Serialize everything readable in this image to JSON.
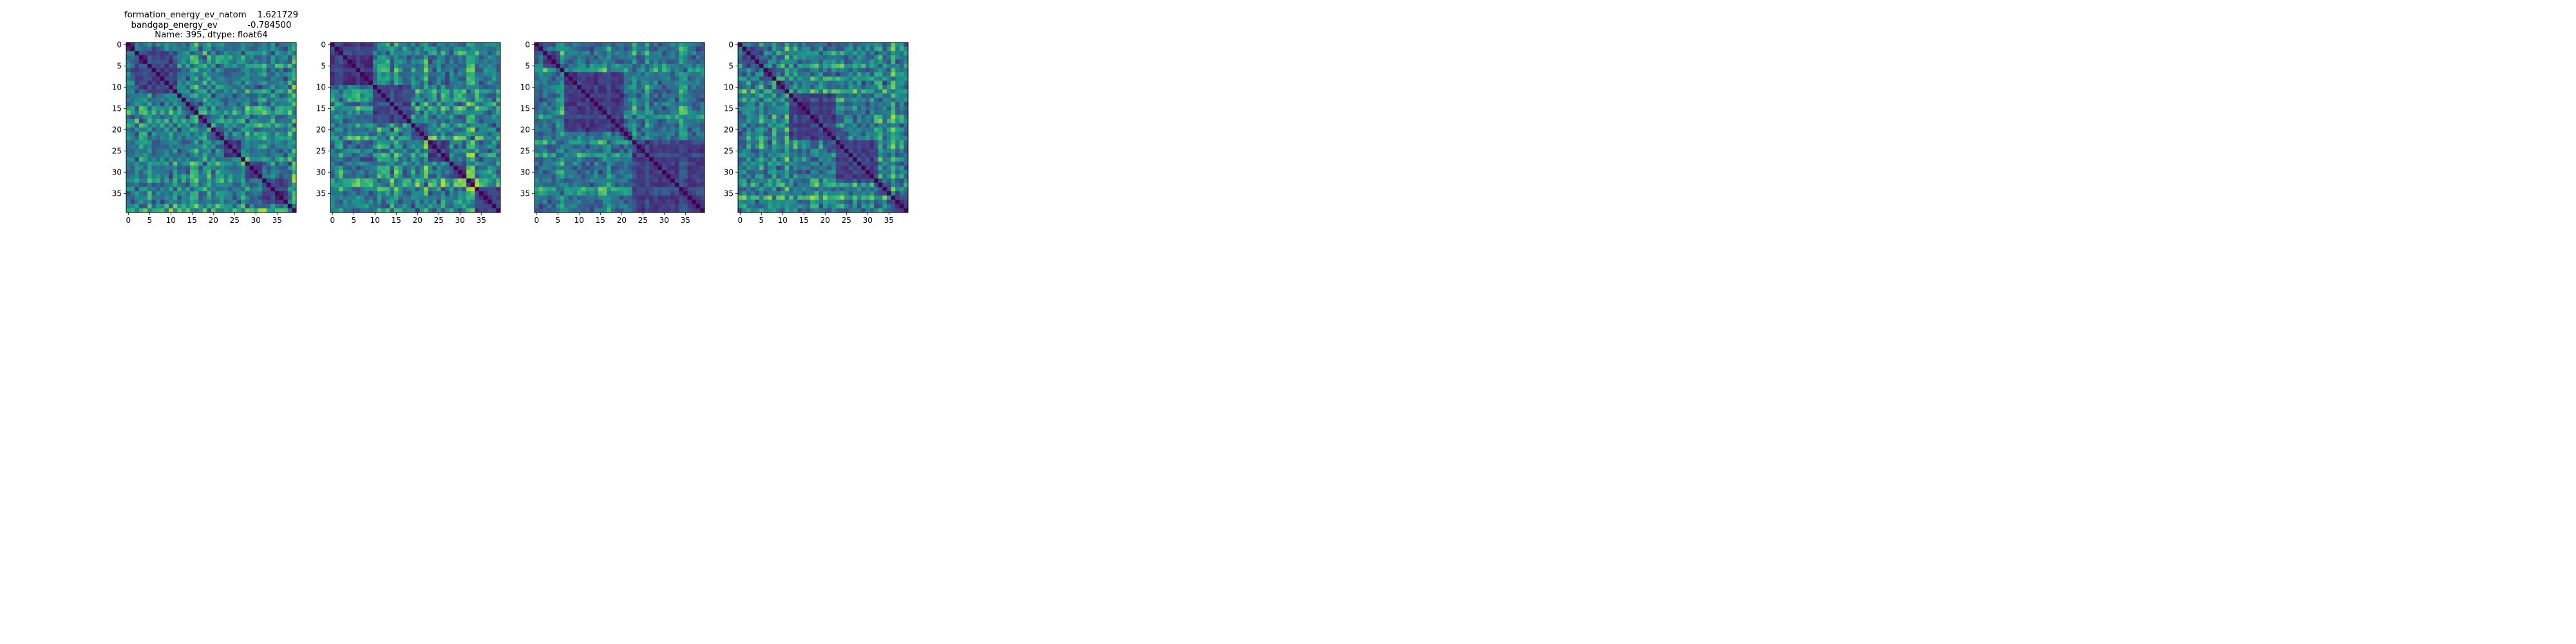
{
  "chart_data": [
    {
      "type": "heatmap",
      "title_lines": [
        "formation_energy_ev_natom    1.621729",
        "bandgap_energy_ev           -0.784500",
        "Name: 395, dtype: float64"
      ],
      "n": 40,
      "xticks": [
        0,
        5,
        10,
        15,
        20,
        25,
        30,
        35
      ],
      "yticks": [
        0,
        5,
        10,
        15,
        20,
        25,
        30,
        35
      ],
      "colormap": "viridis",
      "diagonal_value": 0,
      "seed": 11
    },
    {
      "type": "heatmap",
      "title_lines": [],
      "n": 40,
      "xticks": [
        0,
        5,
        10,
        15,
        20,
        25,
        30,
        35
      ],
      "yticks": [
        0,
        5,
        10,
        15,
        20,
        25,
        30,
        35
      ],
      "colormap": "viridis",
      "diagonal_value": 0,
      "seed": 23
    },
    {
      "type": "heatmap",
      "title_lines": [],
      "n": 40,
      "xticks": [
        0,
        5,
        10,
        15,
        20,
        25,
        30,
        35
      ],
      "yticks": [
        0,
        5,
        10,
        15,
        20,
        25,
        30,
        35
      ],
      "colormap": "viridis",
      "diagonal_value": 0,
      "seed": 37
    },
    {
      "type": "heatmap",
      "title_lines": [],
      "n": 40,
      "xticks": [
        0,
        5,
        10,
        15,
        20,
        25,
        30,
        35
      ],
      "yticks": [
        0,
        5,
        10,
        15,
        20,
        25,
        30,
        35
      ],
      "colormap": "viridis",
      "diagonal_value": 0,
      "seed": 53
    }
  ]
}
